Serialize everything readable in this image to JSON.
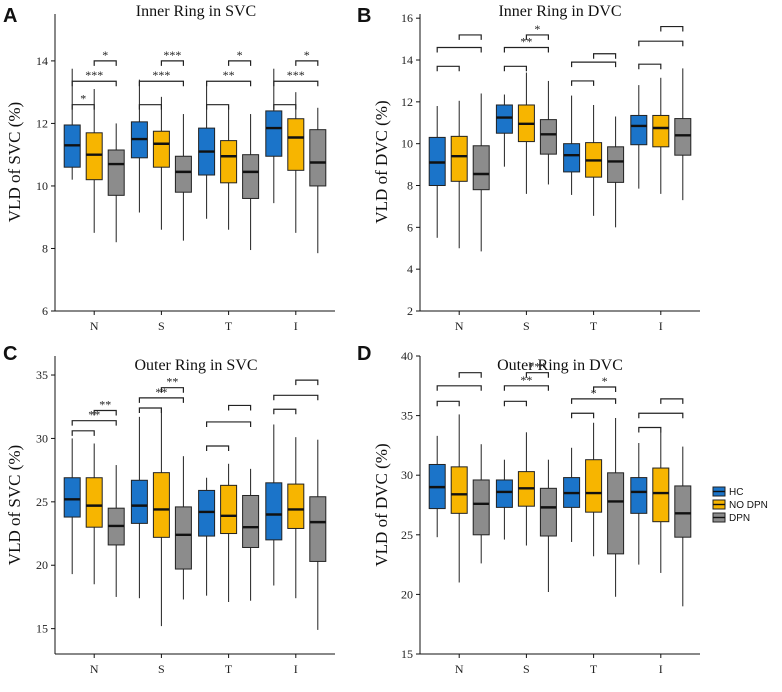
{
  "figure": {
    "colors": {
      "HC": "#1b74c9",
      "NO DPN": "#f7b500",
      "DPN": "#8c8c8c"
    },
    "legend": [
      "HC",
      "NO DPN",
      "DPN"
    ]
  },
  "chart_data": [
    {
      "panel": "A",
      "type": "box",
      "title": "Inner Ring in SVC",
      "ylabel": "VLD of SVC (%)",
      "xlabel": "",
      "ylim": [
        6,
        15.5
      ],
      "yticks": [
        6,
        8,
        10,
        12,
        14
      ],
      "categories": [
        "N",
        "S",
        "T",
        "I"
      ],
      "series": [
        {
          "name": "HC",
          "boxes": [
            {
              "min": 10.2,
              "q1": 10.6,
              "median": 11.3,
              "q3": 11.95,
              "max": 13.75
            },
            {
              "min": 9.15,
              "q1": 10.9,
              "median": 11.5,
              "q3": 12.05,
              "max": 13.4
            },
            {
              "min": 8.95,
              "q1": 10.35,
              "median": 11.1,
              "q3": 11.85,
              "max": 13.35
            },
            {
              "min": 9.45,
              "q1": 10.95,
              "median": 11.85,
              "q3": 12.4,
              "max": 13.75
            }
          ]
        },
        {
          "name": "NO DPN",
          "boxes": [
            {
              "min": 8.5,
              "q1": 10.2,
              "median": 11.0,
              "q3": 11.7,
              "max": 13.1
            },
            {
              "min": 8.6,
              "q1": 10.6,
              "median": 11.35,
              "q3": 11.75,
              "max": 12.85
            },
            {
              "min": 8.6,
              "q1": 10.1,
              "median": 10.95,
              "q3": 11.45,
              "max": 12.55
            },
            {
              "min": 8.5,
              "q1": 10.5,
              "median": 11.55,
              "q3": 12.15,
              "max": 13.0
            }
          ]
        },
        {
          "name": "DPN",
          "boxes": [
            {
              "min": 8.2,
              "q1": 9.7,
              "median": 10.7,
              "q3": 11.15,
              "max": 12.0
            },
            {
              "min": 8.25,
              "q1": 9.8,
              "median": 10.45,
              "q3": 10.95,
              "max": 12.3
            },
            {
              "min": 7.95,
              "q1": 9.6,
              "median": 10.45,
              "q3": 11.0,
              "max": 12.3
            },
            {
              "min": 7.85,
              "q1": 10.0,
              "median": 10.75,
              "q3": 11.8,
              "max": 12.5
            }
          ]
        }
      ],
      "significance": [
        {
          "category": "N",
          "pair": [
            "HC",
            "NO DPN"
          ],
          "y": 12.6,
          "label": "*"
        },
        {
          "category": "N",
          "pair": [
            "HC",
            "DPN"
          ],
          "y": 13.35,
          "label": "***"
        },
        {
          "category": "N",
          "pair": [
            "NO DPN",
            "DPN"
          ],
          "y": 14.0,
          "label": "*"
        },
        {
          "category": "S",
          "pair": [
            "HC",
            "NO DPN"
          ],
          "y": 12.6,
          "label": ""
        },
        {
          "category": "S",
          "pair": [
            "HC",
            "DPN"
          ],
          "y": 13.35,
          "label": "***"
        },
        {
          "category": "S",
          "pair": [
            "NO DPN",
            "DPN"
          ],
          "y": 14.0,
          "label": "***"
        },
        {
          "category": "T",
          "pair": [
            "HC",
            "NO DPN"
          ],
          "y": 12.6,
          "label": ""
        },
        {
          "category": "T",
          "pair": [
            "HC",
            "DPN"
          ],
          "y": 13.35,
          "label": "**"
        },
        {
          "category": "T",
          "pair": [
            "NO DPN",
            "DPN"
          ],
          "y": 14.0,
          "label": "*"
        },
        {
          "category": "I",
          "pair": [
            "HC",
            "NO DPN"
          ],
          "y": 12.6,
          "label": ""
        },
        {
          "category": "I",
          "pair": [
            "HC",
            "DPN"
          ],
          "y": 13.35,
          "label": "***"
        },
        {
          "category": "I",
          "pair": [
            "NO DPN",
            "DPN"
          ],
          "y": 14.0,
          "label": "*"
        }
      ]
    },
    {
      "panel": "B",
      "type": "box",
      "title": "Inner Ring in DVC",
      "ylabel": "VLD of DVC (%)",
      "xlabel": "",
      "ylim": [
        2,
        16.2
      ],
      "yticks": [
        2,
        4,
        6,
        8,
        10,
        12,
        14,
        16
      ],
      "categories": [
        "N",
        "S",
        "T",
        "I"
      ],
      "series": [
        {
          "name": "HC",
          "boxes": [
            {
              "min": 5.5,
              "q1": 8.0,
              "median": 9.1,
              "q3": 10.3,
              "max": 11.8
            },
            {
              "min": 8.9,
              "q1": 10.5,
              "median": 11.25,
              "q3": 11.85,
              "max": 12.35
            },
            {
              "min": 7.55,
              "q1": 8.65,
              "median": 9.45,
              "q3": 10.0,
              "max": 12.3
            },
            {
              "min": 7.85,
              "q1": 9.95,
              "median": 10.85,
              "q3": 11.35,
              "max": 12.8
            }
          ]
        },
        {
          "name": "NO DPN",
          "boxes": [
            {
              "min": 5.0,
              "q1": 8.2,
              "median": 9.4,
              "q3": 10.35,
              "max": 12.05
            },
            {
              "min": 7.6,
              "q1": 10.1,
              "median": 10.95,
              "q3": 11.85,
              "max": 13.4
            },
            {
              "min": 6.55,
              "q1": 8.4,
              "median": 9.2,
              "q3": 10.05,
              "max": 11.85
            },
            {
              "min": 7.6,
              "q1": 9.85,
              "median": 10.75,
              "q3": 11.35,
              "max": 13.15
            }
          ]
        },
        {
          "name": "DPN",
          "boxes": [
            {
              "min": 4.85,
              "q1": 7.8,
              "median": 8.55,
              "q3": 9.9,
              "max": 12.4
            },
            {
              "min": 8.05,
              "q1": 9.5,
              "median": 10.45,
              "q3": 11.15,
              "max": 13.0
            },
            {
              "min": 6.0,
              "q1": 8.15,
              "median": 9.15,
              "q3": 9.85,
              "max": 11.3
            },
            {
              "min": 7.3,
              "q1": 9.45,
              "median": 10.4,
              "q3": 11.2,
              "max": 13.6
            }
          ]
        }
      ],
      "significance": [
        {
          "category": "N",
          "pair": [
            "HC",
            "NO DPN"
          ],
          "y": 13.7,
          "label": ""
        },
        {
          "category": "N",
          "pair": [
            "HC",
            "DPN"
          ],
          "y": 14.6,
          "label": ""
        },
        {
          "category": "N",
          "pair": [
            "NO DPN",
            "DPN"
          ],
          "y": 15.2,
          "label": ""
        },
        {
          "category": "S",
          "pair": [
            "HC",
            "NO DPN"
          ],
          "y": 13.7,
          "label": ""
        },
        {
          "category": "S",
          "pair": [
            "HC",
            "DPN"
          ],
          "y": 14.6,
          "label": "**"
        },
        {
          "category": "S",
          "pair": [
            "NO DPN",
            "DPN"
          ],
          "y": 15.2,
          "label": "*"
        },
        {
          "category": "T",
          "pair": [
            "HC",
            "NO DPN"
          ],
          "y": 13.0,
          "label": ""
        },
        {
          "category": "T",
          "pair": [
            "HC",
            "DPN"
          ],
          "y": 13.9,
          "label": ""
        },
        {
          "category": "T",
          "pair": [
            "NO DPN",
            "DPN"
          ],
          "y": 14.3,
          "label": ""
        },
        {
          "category": "I",
          "pair": [
            "HC",
            "NO DPN"
          ],
          "y": 13.8,
          "label": ""
        },
        {
          "category": "I",
          "pair": [
            "HC",
            "DPN"
          ],
          "y": 14.9,
          "label": ""
        },
        {
          "category": "I",
          "pair": [
            "NO DPN",
            "DPN"
          ],
          "y": 15.6,
          "label": ""
        }
      ]
    },
    {
      "panel": "C",
      "type": "box",
      "title": "Outer Ring in SVC",
      "ylabel": "VLD of SVC (%)",
      "xlabel": "",
      "ylim": [
        13,
        36.5
      ],
      "yticks": [
        15,
        20,
        25,
        30,
        35
      ],
      "categories": [
        "N",
        "S",
        "T",
        "I"
      ],
      "series": [
        {
          "name": "HC",
          "boxes": [
            {
              "min": 19.3,
              "q1": 23.8,
              "median": 25.2,
              "q3": 26.9,
              "max": 30.0
            },
            {
              "min": 17.4,
              "q1": 23.3,
              "median": 24.7,
              "q3": 26.7,
              "max": 31.7
            },
            {
              "min": 17.6,
              "q1": 22.3,
              "median": 24.2,
              "q3": 25.9,
              "max": 26.9
            },
            {
              "min": 18.4,
              "q1": 22.0,
              "median": 24.0,
              "q3": 26.5,
              "max": 31.1
            }
          ]
        },
        {
          "name": "NO DPN",
          "boxes": [
            {
              "min": 18.5,
              "q1": 23.0,
              "median": 24.7,
              "q3": 26.9,
              "max": 29.6
            },
            {
              "min": 15.2,
              "q1": 22.2,
              "median": 24.4,
              "q3": 27.3,
              "max": 32.3
            },
            {
              "min": 17.1,
              "q1": 22.5,
              "median": 23.9,
              "q3": 26.3,
              "max": 28.0
            },
            {
              "min": 17.4,
              "q1": 22.9,
              "median": 24.4,
              "q3": 26.4,
              "max": 30.1
            }
          ]
        },
        {
          "name": "DPN",
          "boxes": [
            {
              "min": 17.5,
              "q1": 21.6,
              "median": 23.1,
              "q3": 24.5,
              "max": 27.9
            },
            {
              "min": 17.3,
              "q1": 19.7,
              "median": 22.4,
              "q3": 24.6,
              "max": 28.6
            },
            {
              "min": 17.2,
              "q1": 21.4,
              "median": 23.0,
              "q3": 25.5,
              "max": 27.6
            },
            {
              "min": 14.9,
              "q1": 20.3,
              "median": 23.4,
              "q3": 25.4,
              "max": 29.9
            }
          ]
        }
      ],
      "significance": [
        {
          "category": "N",
          "pair": [
            "HC",
            "NO DPN"
          ],
          "y": 30.6,
          "label": ""
        },
        {
          "category": "N",
          "pair": [
            "HC",
            "DPN"
          ],
          "y": 31.4,
          "label": "**"
        },
        {
          "category": "N",
          "pair": [
            "NO DPN",
            "DPN"
          ],
          "y": 32.2,
          "label": "**"
        },
        {
          "category": "S",
          "pair": [
            "HC",
            "NO DPN"
          ],
          "y": 32.4,
          "label": ""
        },
        {
          "category": "S",
          "pair": [
            "HC",
            "DPN"
          ],
          "y": 33.2,
          "label": "**"
        },
        {
          "category": "S",
          "pair": [
            "NO DPN",
            "DPN"
          ],
          "y": 34.0,
          "label": "**"
        },
        {
          "category": "T",
          "pair": [
            "HC",
            "NO DPN"
          ],
          "y": 29.4,
          "label": ""
        },
        {
          "category": "T",
          "pair": [
            "HC",
            "DPN"
          ],
          "y": 31.3,
          "label": ""
        },
        {
          "category": "T",
          "pair": [
            "NO DPN",
            "DPN"
          ],
          "y": 32.6,
          "label": ""
        },
        {
          "category": "I",
          "pair": [
            "HC",
            "NO DPN"
          ],
          "y": 32.3,
          "label": ""
        },
        {
          "category": "I",
          "pair": [
            "HC",
            "DPN"
          ],
          "y": 33.4,
          "label": ""
        },
        {
          "category": "I",
          "pair": [
            "NO DPN",
            "DPN"
          ],
          "y": 34.6,
          "label": ""
        }
      ]
    },
    {
      "panel": "D",
      "type": "box",
      "title": "Outer Ring in DVC",
      "ylabel": "VLD of DVC (%)",
      "xlabel": "",
      "ylim": [
        15,
        40
      ],
      "yticks": [
        15,
        20,
        25,
        30,
        35,
        40
      ],
      "categories": [
        "N",
        "S",
        "T",
        "I"
      ],
      "series": [
        {
          "name": "HC",
          "boxes": [
            {
              "min": 24.8,
              "q1": 27.2,
              "median": 29.0,
              "q3": 30.9,
              "max": 33.3
            },
            {
              "min": 24.6,
              "q1": 27.3,
              "median": 28.6,
              "q3": 29.6,
              "max": 31.3
            },
            {
              "min": 24.4,
              "q1": 27.3,
              "median": 28.5,
              "q3": 29.8,
              "max": 32.3
            },
            {
              "min": 22.5,
              "q1": 26.8,
              "median": 28.6,
              "q3": 29.8,
              "max": 32.7
            }
          ]
        },
        {
          "name": "NO DPN",
          "boxes": [
            {
              "min": 21.0,
              "q1": 26.8,
              "median": 28.4,
              "q3": 30.7,
              "max": 35.1
            },
            {
              "min": 24.1,
              "q1": 27.4,
              "median": 28.9,
              "q3": 30.3,
              "max": 33.6
            },
            {
              "min": 23.2,
              "q1": 26.9,
              "median": 28.5,
              "q3": 31.3,
              "max": 34.4
            },
            {
              "min": 21.8,
              "q1": 26.1,
              "median": 28.5,
              "q3": 30.6,
              "max": 33.6
            }
          ]
        },
        {
          "name": "DPN",
          "boxes": [
            {
              "min": 22.6,
              "q1": 25.0,
              "median": 27.6,
              "q3": 29.6,
              "max": 32.6
            },
            {
              "min": 20.2,
              "q1": 24.9,
              "median": 27.3,
              "q3": 28.9,
              "max": 31.3
            },
            {
              "min": 19.8,
              "q1": 23.4,
              "median": 27.8,
              "q3": 30.2,
              "max": 34.8
            },
            {
              "min": 19.0,
              "q1": 24.8,
              "median": 26.8,
              "q3": 29.1,
              "max": 32.4
            }
          ]
        }
      ],
      "significance": [
        {
          "category": "N",
          "pair": [
            "HC",
            "NO DPN"
          ],
          "y": 36.2,
          "label": ""
        },
        {
          "category": "N",
          "pair": [
            "HC",
            "DPN"
          ],
          "y": 37.5,
          "label": ""
        },
        {
          "category": "N",
          "pair": [
            "NO DPN",
            "DPN"
          ],
          "y": 38.6,
          "label": ""
        },
        {
          "category": "S",
          "pair": [
            "HC",
            "NO DPN"
          ],
          "y": 36.2,
          "label": ""
        },
        {
          "category": "S",
          "pair": [
            "HC",
            "DPN"
          ],
          "y": 37.5,
          "label": "**"
        },
        {
          "category": "S",
          "pair": [
            "NO DPN",
            "DPN"
          ],
          "y": 38.6,
          "label": "***"
        },
        {
          "category": "T",
          "pair": [
            "HC",
            "NO DPN"
          ],
          "y": 35.2,
          "label": ""
        },
        {
          "category": "T",
          "pair": [
            "HC",
            "DPN"
          ],
          "y": 36.4,
          "label": "*"
        },
        {
          "category": "T",
          "pair": [
            "NO DPN",
            "DPN"
          ],
          "y": 37.4,
          "label": "*"
        },
        {
          "category": "I",
          "pair": [
            "HC",
            "NO DPN"
          ],
          "y": 34.0,
          "label": ""
        },
        {
          "category": "I",
          "pair": [
            "HC",
            "DPN"
          ],
          "y": 35.2,
          "label": ""
        },
        {
          "category": "I",
          "pair": [
            "NO DPN",
            "DPN"
          ],
          "y": 36.4,
          "label": ""
        }
      ]
    }
  ]
}
